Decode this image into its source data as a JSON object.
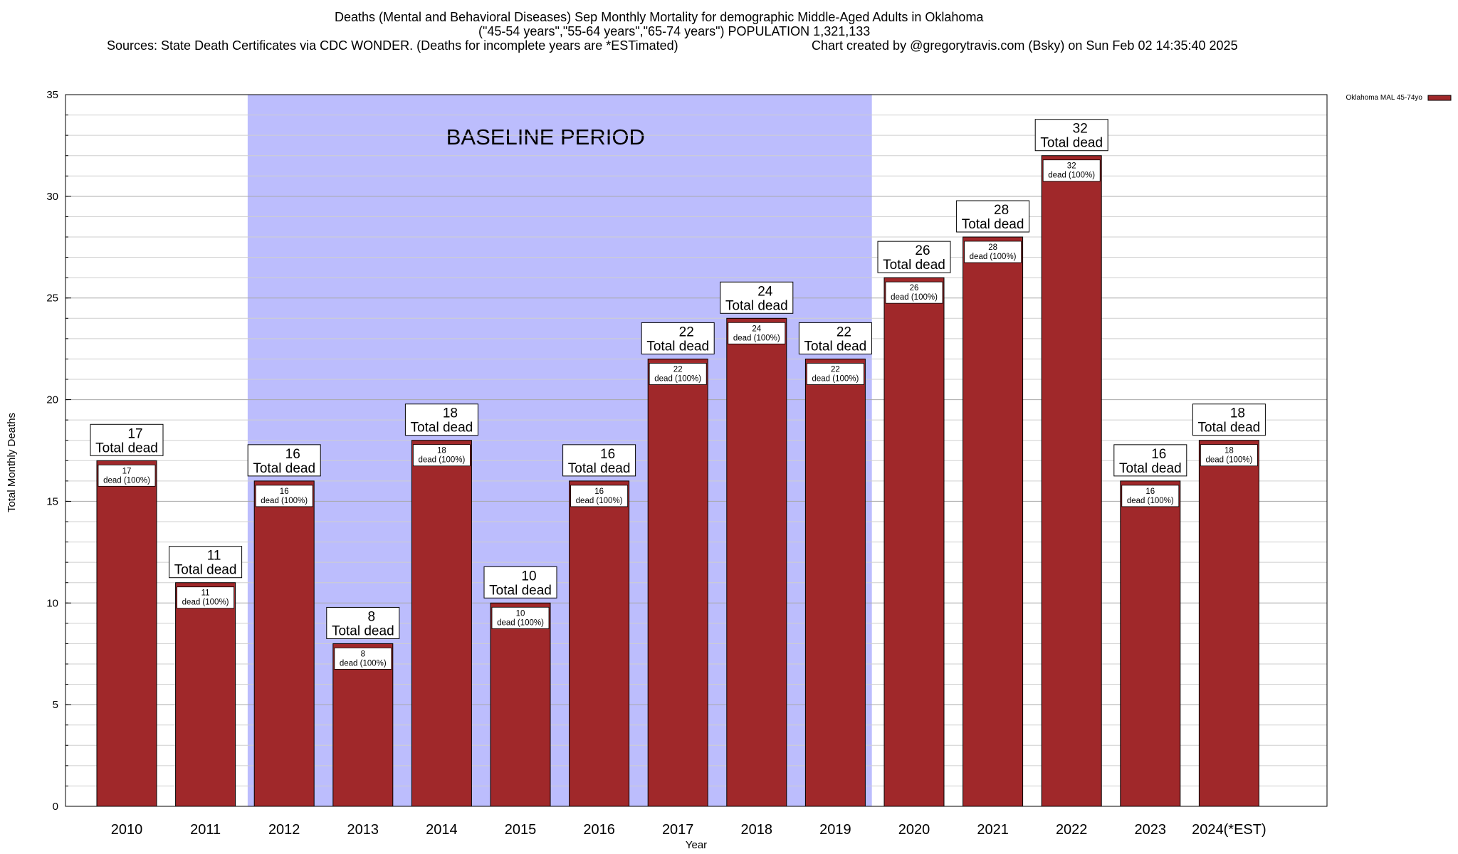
{
  "header": {
    "line1": "Deaths (Mental and Behavioral Diseases) Sep Monthly Mortality for demographic Middle-Aged Adults in Oklahoma",
    "line2": "(\"45-54 years\",\"55-64 years\",\"65-74 years\") POPULATION 1,321,133",
    "line3_sources": "Sources: State Death Certificates via CDC WONDER. (Deaths for incomplete years are *ESTimated)",
    "line3_credit": "Chart created by @gregorytravis.com (Bsky) on Sun Feb 02 14:35:40 2025"
  },
  "chart_data": {
    "type": "bar",
    "title": "Deaths (Mental and Behavioral Diseases) Sep Monthly Mortality for demographic Middle-Aged Adults in Oklahoma",
    "xlabel": "Year",
    "ylabel": "Total Monthly Deaths",
    "ylim": [
      0,
      35
    ],
    "yticks": [
      0,
      5,
      10,
      15,
      20,
      25,
      30,
      35
    ],
    "minor_grid_step": 1,
    "grid": true,
    "legend_position": "top-right",
    "categories": [
      "2010",
      "2011",
      "2012",
      "2013",
      "2014",
      "2015",
      "2016",
      "2017",
      "2018",
      "2019",
      "2020",
      "2021",
      "2022",
      "2023",
      "2024(*EST)"
    ],
    "series": [
      {
        "name": "Oklahoma MAL 45-74yo",
        "color": "#a0282a",
        "values": [
          17,
          11,
          16,
          8,
          18,
          10,
          16,
          22,
          24,
          22,
          26,
          28,
          32,
          16,
          18
        ]
      }
    ],
    "total_label_suffix": "Total dead",
    "inner_label_suffix": "dead (100%)",
    "baseline": {
      "label": "BASELINE PERIOD",
      "from": "2012",
      "to": "2019",
      "color": "#bcbdfd"
    }
  }
}
